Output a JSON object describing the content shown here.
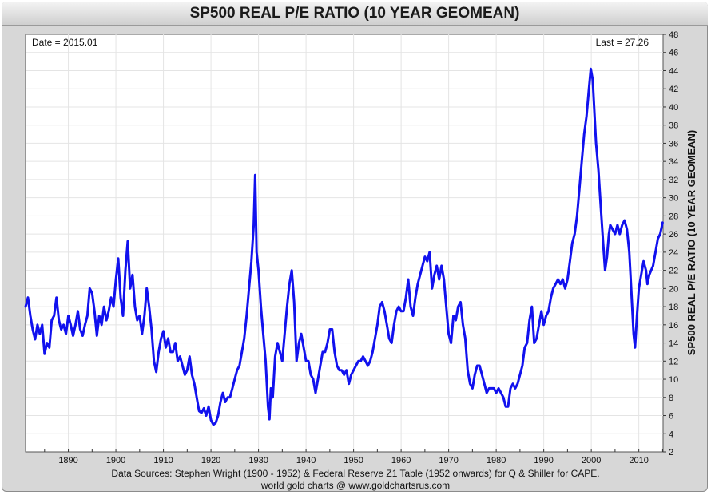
{
  "chart_data": {
    "type": "line",
    "title": "SP500 REAL P/E RATIO (10 YEAR GEOMEAN)",
    "ylabel": "SP500 REAL P/E RATIO (10 YEAR GEOMEAN)",
    "xlabel": "",
    "xlim": [
      1881,
      2015.1
    ],
    "ylim": [
      2,
      48
    ],
    "grid": true,
    "x_ticks": [
      1890,
      1900,
      1910,
      1920,
      1930,
      1940,
      1950,
      1960,
      1970,
      1980,
      1990,
      2000,
      2010
    ],
    "y_ticks": [
      2,
      4,
      6,
      8,
      10,
      12,
      14,
      16,
      18,
      20,
      22,
      24,
      26,
      28,
      30,
      32,
      34,
      36,
      38,
      40,
      42,
      44,
      46,
      48
    ],
    "annotations": {
      "date_label": "Date = 2015.01",
      "last_label": "Last = 27.26"
    },
    "series": [
      {
        "color": "#1111ee",
        "points": [
          [
            1881.0,
            18.0
          ],
          [
            1881.5,
            19.0
          ],
          [
            1882.0,
            17.0
          ],
          [
            1882.5,
            15.5
          ],
          [
            1883.0,
            14.4
          ],
          [
            1883.5,
            16.0
          ],
          [
            1884.0,
            15.0
          ],
          [
            1884.5,
            16.0
          ],
          [
            1885.0,
            12.8
          ],
          [
            1885.5,
            14.0
          ],
          [
            1886.0,
            13.5
          ],
          [
            1886.5,
            16.5
          ],
          [
            1887.0,
            17.0
          ],
          [
            1887.5,
            19.0
          ],
          [
            1888.0,
            16.5
          ],
          [
            1888.5,
            15.5
          ],
          [
            1889.0,
            16.0
          ],
          [
            1889.5,
            15.0
          ],
          [
            1890.0,
            17.0
          ],
          [
            1890.5,
            16.0
          ],
          [
            1891.0,
            14.8
          ],
          [
            1891.5,
            16.0
          ],
          [
            1892.0,
            17.5
          ],
          [
            1892.5,
            15.5
          ],
          [
            1893.0,
            14.8
          ],
          [
            1893.5,
            16.0
          ],
          [
            1894.0,
            17.0
          ],
          [
            1894.5,
            20.0
          ],
          [
            1895.0,
            19.5
          ],
          [
            1895.5,
            17.5
          ],
          [
            1896.0,
            14.8
          ],
          [
            1896.5,
            17.0
          ],
          [
            1897.0,
            16.0
          ],
          [
            1897.5,
            18.0
          ],
          [
            1898.0,
            16.5
          ],
          [
            1898.5,
            17.5
          ],
          [
            1899.0,
            19.0
          ],
          [
            1899.5,
            18.0
          ],
          [
            1900.0,
            21.0
          ],
          [
            1900.5,
            23.3
          ],
          [
            1901.0,
            19.0
          ],
          [
            1901.5,
            17.0
          ],
          [
            1902.0,
            22.0
          ],
          [
            1902.5,
            25.2
          ],
          [
            1903.0,
            20.0
          ],
          [
            1903.5,
            21.5
          ],
          [
            1904.0,
            18.0
          ],
          [
            1904.5,
            16.5
          ],
          [
            1905.0,
            17.0
          ],
          [
            1905.5,
            15.0
          ],
          [
            1906.0,
            17.0
          ],
          [
            1906.5,
            20.0
          ],
          [
            1907.0,
            18.0
          ],
          [
            1907.5,
            15.5
          ],
          [
            1908.0,
            12.0
          ],
          [
            1908.5,
            10.8
          ],
          [
            1909.0,
            13.0
          ],
          [
            1909.5,
            14.5
          ],
          [
            1910.0,
            15.3
          ],
          [
            1910.5,
            13.5
          ],
          [
            1911.0,
            14.5
          ],
          [
            1911.5,
            13.0
          ],
          [
            1912.0,
            13.0
          ],
          [
            1912.5,
            14.0
          ],
          [
            1913.0,
            12.0
          ],
          [
            1913.5,
            12.5
          ],
          [
            1914.0,
            11.5
          ],
          [
            1914.5,
            10.5
          ],
          [
            1915.0,
            11.0
          ],
          [
            1915.5,
            12.5
          ],
          [
            1916.0,
            10.5
          ],
          [
            1916.5,
            9.5
          ],
          [
            1917.0,
            8.0
          ],
          [
            1917.5,
            6.5
          ],
          [
            1918.0,
            6.3
          ],
          [
            1918.5,
            6.8
          ],
          [
            1919.0,
            6.0
          ],
          [
            1919.5,
            7.0
          ],
          [
            1920.0,
            5.5
          ],
          [
            1920.5,
            5.0
          ],
          [
            1921.0,
            5.2
          ],
          [
            1921.5,
            6.0
          ],
          [
            1922.0,
            7.5
          ],
          [
            1922.5,
            8.5
          ],
          [
            1923.0,
            7.5
          ],
          [
            1923.5,
            8.0
          ],
          [
            1924.0,
            8.0
          ],
          [
            1924.5,
            9.0
          ],
          [
            1925.0,
            10.0
          ],
          [
            1925.5,
            11.0
          ],
          [
            1926.0,
            11.5
          ],
          [
            1926.5,
            13.0
          ],
          [
            1927.0,
            14.5
          ],
          [
            1927.5,
            17.0
          ],
          [
            1928.0,
            20.0
          ],
          [
            1928.5,
            23.0
          ],
          [
            1929.0,
            27.0
          ],
          [
            1929.3,
            32.5
          ],
          [
            1929.6,
            24.0
          ],
          [
            1930.0,
            22.0
          ],
          [
            1930.5,
            18.0
          ],
          [
            1931.0,
            15.0
          ],
          [
            1931.5,
            12.0
          ],
          [
            1932.0,
            7.0
          ],
          [
            1932.3,
            5.6
          ],
          [
            1932.6,
            9.0
          ],
          [
            1933.0,
            8.0
          ],
          [
            1933.5,
            12.5
          ],
          [
            1934.0,
            14.0
          ],
          [
            1934.5,
            13.0
          ],
          [
            1935.0,
            12.0
          ],
          [
            1935.5,
            15.0
          ],
          [
            1936.0,
            18.0
          ],
          [
            1936.5,
            20.5
          ],
          [
            1937.0,
            22.0
          ],
          [
            1937.5,
            18.5
          ],
          [
            1938.0,
            12.0
          ],
          [
            1938.5,
            14.0
          ],
          [
            1939.0,
            15.0
          ],
          [
            1939.5,
            13.5
          ],
          [
            1940.0,
            12.0
          ],
          [
            1940.5,
            12.0
          ],
          [
            1941.0,
            10.5
          ],
          [
            1941.5,
            10.0
          ],
          [
            1942.0,
            8.5
          ],
          [
            1942.5,
            10.0
          ],
          [
            1943.0,
            11.5
          ],
          [
            1943.5,
            13.0
          ],
          [
            1944.0,
            13.0
          ],
          [
            1944.5,
            14.0
          ],
          [
            1945.0,
            15.5
          ],
          [
            1945.5,
            15.5
          ],
          [
            1946.0,
            13.0
          ],
          [
            1946.5,
            11.5
          ],
          [
            1947.0,
            11.0
          ],
          [
            1947.5,
            11.0
          ],
          [
            1948.0,
            10.5
          ],
          [
            1948.5,
            11.0
          ],
          [
            1949.0,
            9.5
          ],
          [
            1949.5,
            10.5
          ],
          [
            1950.0,
            11.0
          ],
          [
            1950.5,
            11.5
          ],
          [
            1951.0,
            12.0
          ],
          [
            1951.5,
            12.0
          ],
          [
            1952.0,
            12.5
          ],
          [
            1952.5,
            12.0
          ],
          [
            1953.0,
            11.5
          ],
          [
            1953.5,
            12.0
          ],
          [
            1954.0,
            13.0
          ],
          [
            1954.5,
            14.5
          ],
          [
            1955.0,
            16.0
          ],
          [
            1955.5,
            18.0
          ],
          [
            1956.0,
            18.5
          ],
          [
            1956.5,
            17.5
          ],
          [
            1957.0,
            16.0
          ],
          [
            1957.5,
            14.5
          ],
          [
            1958.0,
            14.0
          ],
          [
            1958.5,
            16.0
          ],
          [
            1959.0,
            17.5
          ],
          [
            1959.5,
            18.0
          ],
          [
            1960.0,
            17.5
          ],
          [
            1960.5,
            17.5
          ],
          [
            1961.0,
            19.0
          ],
          [
            1961.5,
            21.0
          ],
          [
            1962.0,
            18.0
          ],
          [
            1962.5,
            17.0
          ],
          [
            1963.0,
            19.0
          ],
          [
            1963.5,
            20.5
          ],
          [
            1964.0,
            21.5
          ],
          [
            1964.5,
            22.5
          ],
          [
            1965.0,
            23.5
          ],
          [
            1965.5,
            23.0
          ],
          [
            1966.0,
            24.0
          ],
          [
            1966.5,
            20.0
          ],
          [
            1967.0,
            21.5
          ],
          [
            1967.5,
            22.5
          ],
          [
            1968.0,
            21.0
          ],
          [
            1968.5,
            22.5
          ],
          [
            1969.0,
            21.0
          ],
          [
            1969.5,
            18.0
          ],
          [
            1970.0,
            15.0
          ],
          [
            1970.5,
            14.0
          ],
          [
            1971.0,
            17.0
          ],
          [
            1971.5,
            16.5
          ],
          [
            1972.0,
            18.0
          ],
          [
            1972.5,
            18.5
          ],
          [
            1973.0,
            16.0
          ],
          [
            1973.5,
            14.5
          ],
          [
            1974.0,
            11.0
          ],
          [
            1974.5,
            9.5
          ],
          [
            1975.0,
            9.0
          ],
          [
            1975.5,
            10.5
          ],
          [
            1976.0,
            11.5
          ],
          [
            1976.5,
            11.5
          ],
          [
            1977.0,
            10.5
          ],
          [
            1977.5,
            9.5
          ],
          [
            1978.0,
            8.5
          ],
          [
            1978.5,
            9.0
          ],
          [
            1979.0,
            9.0
          ],
          [
            1979.5,
            9.0
          ],
          [
            1980.0,
            8.5
          ],
          [
            1980.5,
            9.0
          ],
          [
            1981.0,
            8.5
          ],
          [
            1981.5,
            8.0
          ],
          [
            1982.0,
            7.0
          ],
          [
            1982.5,
            7.0
          ],
          [
            1983.0,
            9.0
          ],
          [
            1983.5,
            9.5
          ],
          [
            1984.0,
            9.0
          ],
          [
            1984.5,
            9.5
          ],
          [
            1985.0,
            10.5
          ],
          [
            1985.5,
            11.5
          ],
          [
            1986.0,
            13.5
          ],
          [
            1986.5,
            14.0
          ],
          [
            1987.0,
            16.5
          ],
          [
            1987.5,
            18.0
          ],
          [
            1988.0,
            14.0
          ],
          [
            1988.5,
            14.5
          ],
          [
            1989.0,
            16.0
          ],
          [
            1989.5,
            17.5
          ],
          [
            1990.0,
            16.0
          ],
          [
            1990.5,
            17.0
          ],
          [
            1991.0,
            17.5
          ],
          [
            1991.5,
            19.0
          ],
          [
            1992.0,
            20.0
          ],
          [
            1992.5,
            20.5
          ],
          [
            1993.0,
            21.0
          ],
          [
            1993.5,
            20.5
          ],
          [
            1994.0,
            21.0
          ],
          [
            1994.5,
            20.0
          ],
          [
            1995.0,
            21.0
          ],
          [
            1995.5,
            23.0
          ],
          [
            1996.0,
            25.0
          ],
          [
            1996.5,
            26.0
          ],
          [
            1997.0,
            28.0
          ],
          [
            1997.5,
            31.0
          ],
          [
            1998.0,
            34.0
          ],
          [
            1998.5,
            37.0
          ],
          [
            1999.0,
            39.0
          ],
          [
            1999.5,
            42.0
          ],
          [
            1999.9,
            44.2
          ],
          [
            2000.3,
            43.0
          ],
          [
            2000.6,
            40.0
          ],
          [
            2001.0,
            36.0
          ],
          [
            2001.5,
            33.0
          ],
          [
            2002.0,
            29.0
          ],
          [
            2002.5,
            25.0
          ],
          [
            2002.9,
            22.0
          ],
          [
            2003.3,
            23.5
          ],
          [
            2003.7,
            26.0
          ],
          [
            2004.0,
            27.0
          ],
          [
            2004.5,
            26.5
          ],
          [
            2005.0,
            26.0
          ],
          [
            2005.5,
            27.0
          ],
          [
            2006.0,
            26.0
          ],
          [
            2006.5,
            27.0
          ],
          [
            2007.0,
            27.5
          ],
          [
            2007.5,
            26.5
          ],
          [
            2008.0,
            24.0
          ],
          [
            2008.5,
            19.0
          ],
          [
            2008.9,
            15.0
          ],
          [
            2009.2,
            13.5
          ],
          [
            2009.6,
            17.0
          ],
          [
            2010.0,
            20.0
          ],
          [
            2010.5,
            21.5
          ],
          [
            2011.0,
            23.0
          ],
          [
            2011.5,
            22.0
          ],
          [
            2011.8,
            20.5
          ],
          [
            2012.2,
            21.5
          ],
          [
            2012.6,
            22.0
          ],
          [
            2013.0,
            22.5
          ],
          [
            2013.5,
            24.0
          ],
          [
            2014.0,
            25.5
          ],
          [
            2014.5,
            26.0
          ],
          [
            2015.0,
            27.26
          ]
        ]
      }
    ]
  },
  "footer": {
    "sources": "Data Sources: Stephen Wright (1900 - 1952) & Federal Reserve Z1 Table (1952 onwards) for Q & Shiller for CAPE.",
    "credit": "world gold charts @ www.goldchartsrus.com"
  }
}
